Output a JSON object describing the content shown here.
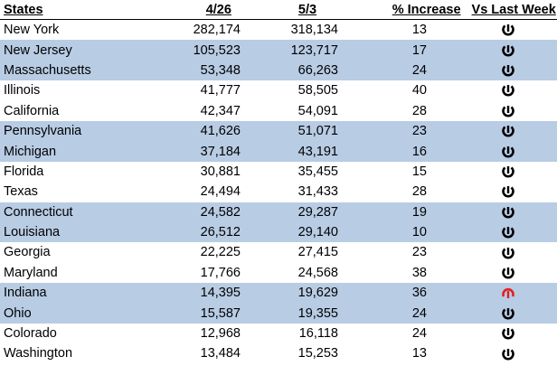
{
  "headers": {
    "state": "States",
    "col_a": "4/26",
    "col_b": "5/3",
    "pct": "% Increase",
    "vs": "Vs Last Week"
  },
  "colors": {
    "row_shade": "#b8cce4",
    "trend_same": "#000000",
    "trend_up": "#e02020"
  },
  "rows": [
    {
      "state": "New York",
      "a": "282,174",
      "b": "318,134",
      "pct": "13",
      "trend": "same",
      "shaded": false
    },
    {
      "state": "New Jersey",
      "a": "105,523",
      "b": "123,717",
      "pct": "17",
      "trend": "same",
      "shaded": true
    },
    {
      "state": "Massachusetts",
      "a": "53,348",
      "b": "66,263",
      "pct": "24",
      "trend": "same",
      "shaded": true
    },
    {
      "state": "Illinois",
      "a": "41,777",
      "b": "58,505",
      "pct": "40",
      "trend": "same",
      "shaded": false
    },
    {
      "state": "California",
      "a": "42,347",
      "b": "54,091",
      "pct": "28",
      "trend": "same",
      "shaded": false
    },
    {
      "state": "Pennsylvania",
      "a": "41,626",
      "b": "51,071",
      "pct": "23",
      "trend": "same",
      "shaded": true
    },
    {
      "state": "Michigan",
      "a": "37,184",
      "b": "43,191",
      "pct": "16",
      "trend": "same",
      "shaded": true
    },
    {
      "state": "Florida",
      "a": "30,881",
      "b": "35,455",
      "pct": "15",
      "trend": "same",
      "shaded": false
    },
    {
      "state": "Texas",
      "a": "24,494",
      "b": "31,433",
      "pct": "28",
      "trend": "same",
      "shaded": false
    },
    {
      "state": "Connecticut",
      "a": "24,582",
      "b": "29,287",
      "pct": "19",
      "trend": "same",
      "shaded": true
    },
    {
      "state": "Louisiana",
      "a": "26,512",
      "b": "29,140",
      "pct": "10",
      "trend": "same",
      "shaded": true
    },
    {
      "state": "Georgia",
      "a": "22,225",
      "b": "27,415",
      "pct": "23",
      "trend": "same",
      "shaded": false
    },
    {
      "state": "Maryland",
      "a": "17,766",
      "b": "24,568",
      "pct": "38",
      "trend": "same",
      "shaded": false
    },
    {
      "state": "Indiana",
      "a": "14,395",
      "b": "19,629",
      "pct": "36",
      "trend": "up",
      "shaded": true
    },
    {
      "state": "Ohio",
      "a": "15,587",
      "b": "19,355",
      "pct": "24",
      "trend": "same",
      "shaded": true
    },
    {
      "state": "Colorado",
      "a": "12,968",
      "b": "16,118",
      "pct": "24",
      "trend": "same",
      "shaded": false
    },
    {
      "state": "Washington",
      "a": "13,484",
      "b": "15,253",
      "pct": "13",
      "trend": "same",
      "shaded": false
    }
  ]
}
